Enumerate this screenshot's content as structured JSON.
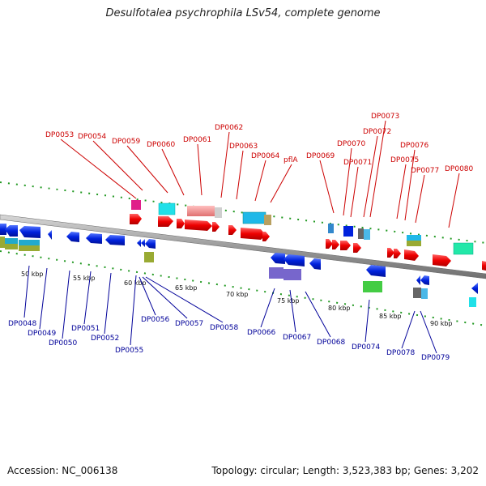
{
  "title": "Desulfotalea psychrophila LSv54, complete genome",
  "footer": {
    "accession": "Accession: NC_006138",
    "topology": "Topology: circular; Length: 3,523,383 bp; Genes: 3,202"
  },
  "scale_labels": [
    "50 kbp",
    "55 kbp",
    "60 kbp",
    "65 kbp",
    "70 kbp",
    "75 kbp",
    "80 kbp",
    "85 kbp",
    "90 kbp"
  ],
  "top_gene_labels": [
    "DP0053",
    "DP0054",
    "DP0059",
    "DP0060",
    "DP0061",
    "DP0062",
    "DP0063",
    "DP0064",
    "pflA",
    "DP0069",
    "DP0070",
    "DP0071",
    "DP0072",
    "DP0073",
    "DP0075",
    "DP0076",
    "DP0077",
    "DP0080"
  ],
  "bottom_gene_labels": [
    "DP0048",
    "DP0049",
    "DP0050",
    "DP0051",
    "DP0052",
    "DP0055",
    "DP0056",
    "DP0057",
    "DP0058",
    "DP0066",
    "DP0067",
    "DP0068",
    "DP0074",
    "DP0078",
    "DP0079"
  ],
  "colors": {
    "top_label": "#cc0000",
    "bottom_label": "#000099",
    "forward_gene": "#ee0000",
    "reverse_gene": "#0022dd",
    "backbone": "#888888",
    "scale_dots": "#229922"
  }
}
